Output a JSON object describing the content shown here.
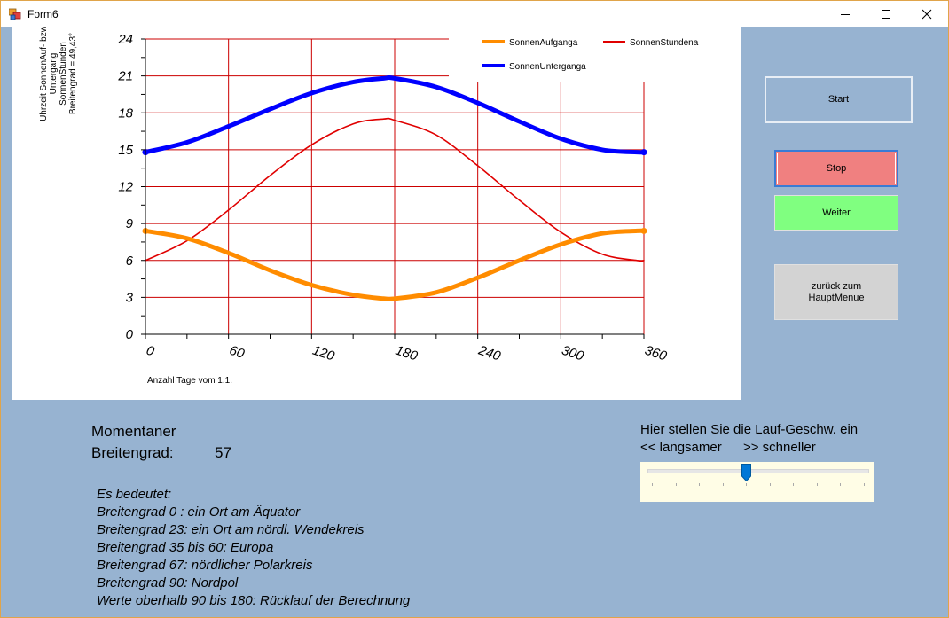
{
  "window": {
    "title": "Form6"
  },
  "chart_data": {
    "type": "line",
    "title": "",
    "ylabel_lines": [
      "Uhrzeit SonnenAuf- bzw",
      "Untergang",
      "SonnenStunden",
      "Breitengrad = 49,43°"
    ],
    "xlabel": "Anzahl Tage vom 1.1.",
    "xlim": [
      0,
      360
    ],
    "ylim": [
      0,
      24
    ],
    "x_ticks": [
      "0",
      "60",
      "120",
      "180",
      "240",
      "300",
      "360"
    ],
    "y_ticks": [
      "0",
      "3",
      "6",
      "9",
      "12",
      "15",
      "18",
      "21",
      "24"
    ],
    "grid": true,
    "legend_position": "top-right",
    "series": [
      {
        "name": "SonnenAufganga",
        "color": "#ff8c00",
        "x": [
          0,
          30,
          60,
          90,
          120,
          150,
          172,
          180,
          210,
          240,
          270,
          300,
          330,
          355,
          360
        ],
        "values": [
          8.4,
          7.8,
          6.6,
          5.2,
          4.0,
          3.2,
          2.9,
          2.9,
          3.4,
          4.6,
          6.0,
          7.3,
          8.2,
          8.4,
          8.4
        ]
      },
      {
        "name": "SonnenUnterganga",
        "color": "#0000ff",
        "x": [
          0,
          30,
          60,
          90,
          120,
          150,
          172,
          180,
          210,
          240,
          270,
          300,
          330,
          355,
          360
        ],
        "values": [
          14.8,
          15.6,
          16.9,
          18.3,
          19.6,
          20.5,
          20.8,
          20.8,
          20.1,
          18.8,
          17.3,
          15.9,
          15.0,
          14.8,
          14.8
        ]
      },
      {
        "name": "SonnenStundena",
        "color": "#e00000",
        "x": [
          0,
          30,
          60,
          90,
          120,
          150,
          172,
          180,
          210,
          240,
          270,
          300,
          330,
          355,
          360
        ],
        "values": [
          6.0,
          7.6,
          10.1,
          12.9,
          15.4,
          17.1,
          17.5,
          17.4,
          16.2,
          13.7,
          10.9,
          8.3,
          6.5,
          6.0,
          6.0
        ]
      }
    ]
  },
  "buttons": {
    "start": "Start",
    "stop": "Stop",
    "weiter": "Weiter",
    "back_line1": "zurück zum",
    "back_line2": "HauptMenue"
  },
  "latitude": {
    "label_line1": "Momentaner",
    "label_line2": "Breitengrad:",
    "value": "57"
  },
  "speed": {
    "label": "Hier stellen Sie die Lauf-Geschw. ein",
    "slower": "<< langsamer",
    "faster": ">> schneller",
    "slider_value": 0.45
  },
  "info_lines": [
    "Es bedeutet:",
    "Breitengrad 0 : ein Ort am Äquator",
    "Breitengrad 23: ein Ort am nördl. Wendekreis",
    "Breitengrad 35 bis 60: Europa",
    "Breitengrad 67: nördlicher Polarkreis",
    "Breitengrad 90: Nordpol",
    "Werte oberhalb 90 bis 180: Rücklauf der Berechnung"
  ],
  "icons": {
    "app": "winforms-app-icon",
    "minimize": "minimize-icon",
    "maximize": "maximize-icon",
    "close": "close-icon"
  }
}
